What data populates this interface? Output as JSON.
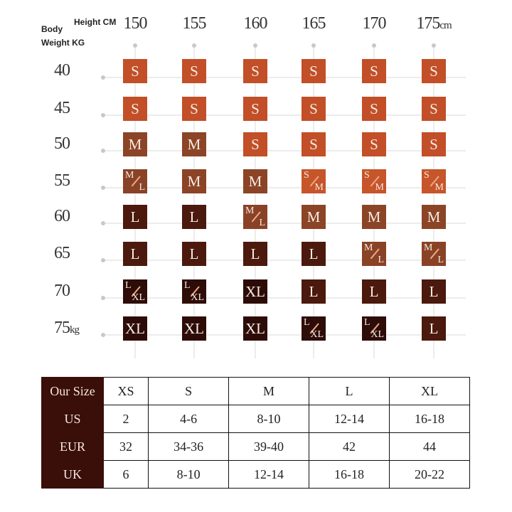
{
  "header": {
    "height_label": "Height CM",
    "body_label": "Body",
    "weight_label": "Weight  KG"
  },
  "heights": [
    "150",
    "155",
    "160",
    "165",
    "170",
    "175cm"
  ],
  "weights": [
    "40",
    "45",
    "50",
    "55",
    "60",
    "65",
    "70",
    "75kg"
  ],
  "colors": {
    "S": "#c24f27",
    "S/M": "#c6552a",
    "M": "#8c4426",
    "M/L": "#8a4226",
    "L": "#4b190d",
    "L/XL": "#2e0c07",
    "XL": "#2d0b07"
  },
  "grid": [
    [
      "S",
      "S",
      "S",
      "S",
      "S",
      "S"
    ],
    [
      "S",
      "S",
      "S",
      "S",
      "S",
      "S"
    ],
    [
      "M",
      "M",
      "S",
      "S",
      "S",
      "S"
    ],
    [
      "M/L",
      "M",
      "M",
      "S/M",
      "S/M",
      "S/M"
    ],
    [
      "L",
      "L",
      "M/L",
      "M",
      "M",
      "M"
    ],
    [
      "L",
      "L",
      "L",
      "L",
      "M/L",
      "M/L"
    ],
    [
      "L/XL",
      "L/XL",
      "XL",
      "L",
      "L",
      "L"
    ],
    [
      "XL",
      "XL",
      "XL",
      "L/XL",
      "L/XL",
      "L"
    ]
  ],
  "table": {
    "rows": [
      [
        "Our Size",
        "XS",
        "S",
        "M",
        "L",
        "XL"
      ],
      [
        "US",
        "2",
        "4-6",
        "8-10",
        "12-14",
        "16-18"
      ],
      [
        "EUR",
        "32",
        "34-36",
        "39-40",
        "42",
        "44"
      ],
      [
        "UK",
        "6",
        "8-10",
        "12-14",
        "16-18",
        "20-22"
      ]
    ]
  }
}
